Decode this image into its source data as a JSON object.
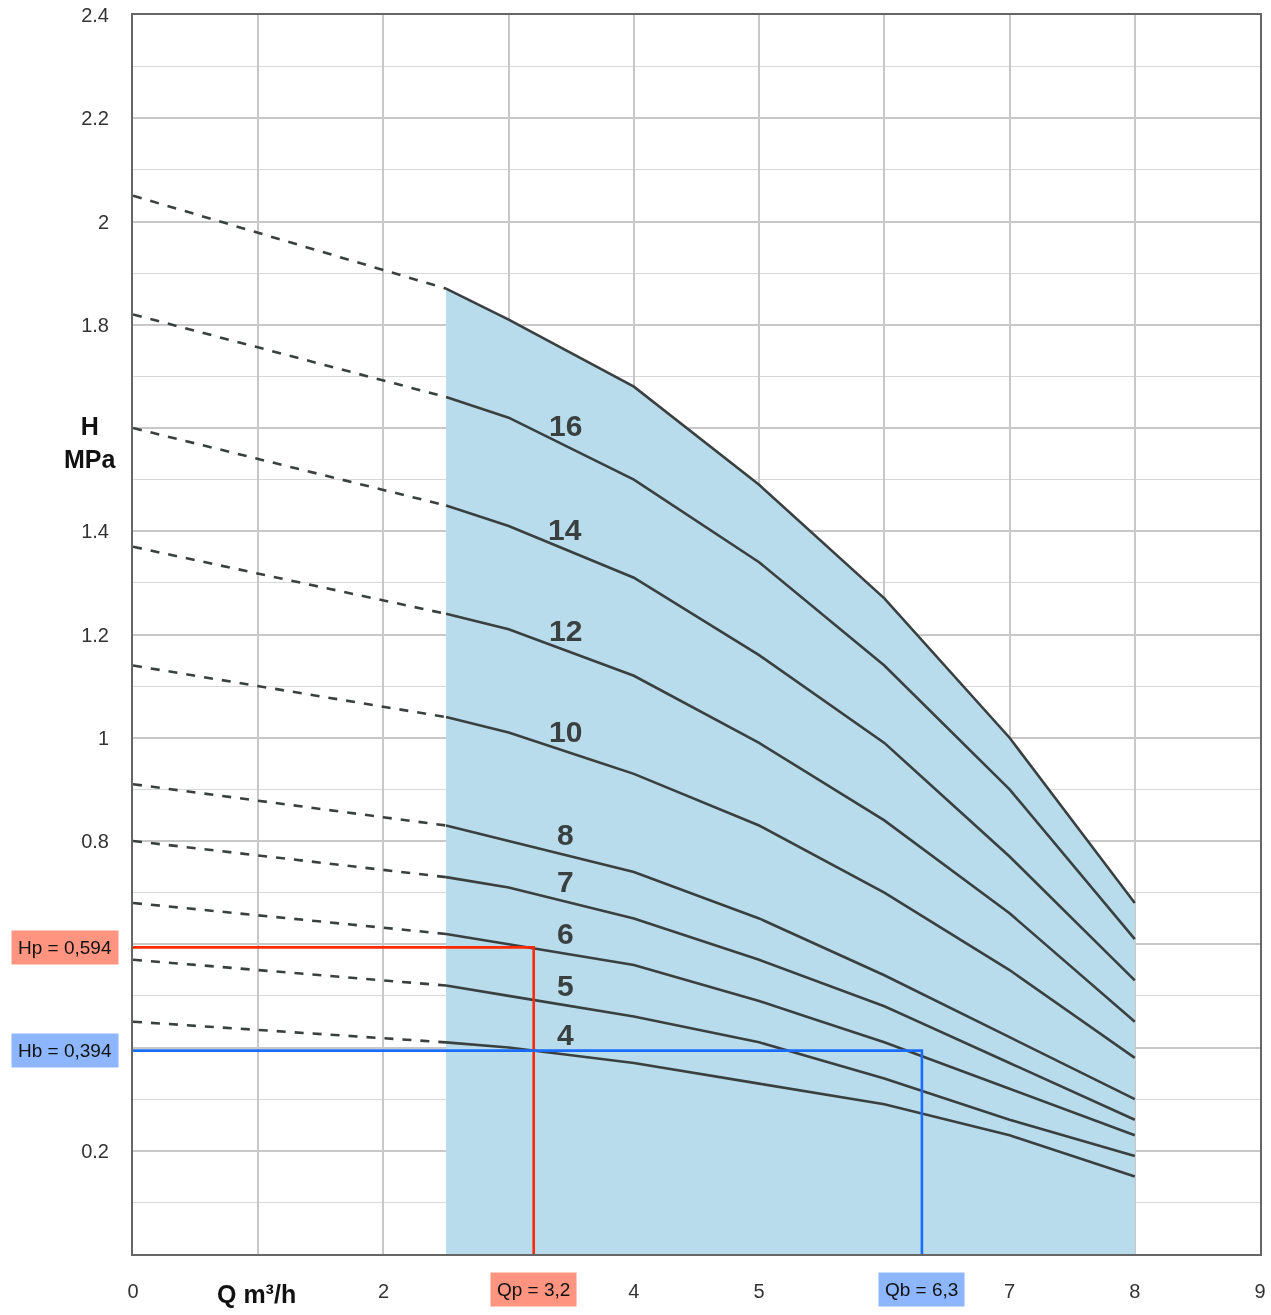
{
  "chart_data": {
    "type": "line",
    "xlabel": "Q m³/h",
    "ylabel": "H\nMPa",
    "xlim": [
      0,
      9
    ],
    "ylim": [
      0,
      2.4
    ],
    "xticks": [
      0,
      {
        "value": 1,
        "label": null
      },
      2,
      {
        "value": 3,
        "label": null
      },
      4,
      5,
      {
        "value": 6,
        "label": null
      },
      7,
      8,
      9
    ],
    "yticks": [
      {
        "value": 0,
        "label": null
      },
      0.2,
      {
        "value": 0.4,
        "label": null
      },
      {
        "value": 0.6,
        "label": null
      },
      0.8,
      1,
      1.2,
      1.4,
      {
        "value": 1.6,
        "label": null
      },
      1.8,
      2,
      2.2,
      2.4
    ],
    "grid": true,
    "series": [
      {
        "color": "#3a4040",
        "line_style": "dashed",
        "x": [
          0,
          2.5
        ],
        "values": [
          2.05,
          1.87
        ]
      },
      {
        "color": "#3a4040",
        "line_style": "dashed",
        "x": [
          0,
          2.5
        ],
        "values": [
          1.82,
          1.66
        ]
      },
      {
        "name": "16",
        "color": "#3a4040",
        "x": [
          2.5,
          3,
          4,
          5,
          6,
          7,
          8
        ],
        "values": [
          1.66,
          1.62,
          1.5,
          1.34,
          1.14,
          0.9,
          0.61
        ]
      },
      {
        "color": "#3a4040",
        "line_style": "dashed",
        "x": [
          0,
          2.5
        ],
        "values": [
          1.6,
          1.45
        ]
      },
      {
        "name": "14",
        "color": "#3a4040",
        "x": [
          2.5,
          3,
          4,
          5,
          6,
          7,
          8
        ],
        "values": [
          1.45,
          1.41,
          1.31,
          1.16,
          0.99,
          0.77,
          0.53
        ]
      },
      {
        "color": "#3a4040",
        "line_style": "dashed",
        "x": [
          0,
          2.5
        ],
        "values": [
          1.37,
          1.24
        ]
      },
      {
        "name": "12",
        "color": "#3a4040",
        "x": [
          2.5,
          3,
          4,
          5,
          6,
          7,
          8
        ],
        "values": [
          1.24,
          1.21,
          1.12,
          0.99,
          0.84,
          0.66,
          0.45
        ]
      },
      {
        "color": "#3a4040",
        "line_style": "dashed",
        "x": [
          0,
          2.5
        ],
        "values": [
          1.14,
          1.04
        ]
      },
      {
        "name": "10",
        "color": "#3a4040",
        "x": [
          2.5,
          3,
          4,
          5,
          6,
          7,
          8
        ],
        "values": [
          1.04,
          1.01,
          0.93,
          0.83,
          0.7,
          0.55,
          0.38
        ]
      },
      {
        "color": "#3a4040",
        "line_style": "dashed",
        "x": [
          0,
          2.5
        ],
        "values": [
          0.91,
          0.83
        ]
      },
      {
        "name": "8",
        "color": "#3a4040",
        "x": [
          2.5,
          3,
          4,
          5,
          6,
          7,
          8
        ],
        "values": [
          0.83,
          0.8,
          0.74,
          0.65,
          0.54,
          0.42,
          0.3
        ]
      },
      {
        "color": "#3a4040",
        "line_style": "dashed",
        "x": [
          0,
          2.5
        ],
        "values": [
          0.8,
          0.73
        ]
      },
      {
        "name": "7",
        "color": "#3a4040",
        "x": [
          2.5,
          3,
          4,
          5,
          6,
          7,
          8
        ],
        "values": [
          0.73,
          0.71,
          0.65,
          0.57,
          0.48,
          0.37,
          0.26
        ]
      },
      {
        "color": "#3a4040",
        "line_style": "dashed",
        "x": [
          0,
          2.5
        ],
        "values": [
          0.68,
          0.62
        ]
      },
      {
        "name": "6",
        "color": "#3a4040",
        "x": [
          2.5,
          3,
          4,
          5,
          6,
          7,
          8
        ],
        "values": [
          0.62,
          0.6,
          0.56,
          0.49,
          0.41,
          0.32,
          0.23
        ]
      },
      {
        "color": "#3a4040",
        "line_style": "dashed",
        "x": [
          0,
          2.5
        ],
        "values": [
          0.57,
          0.52
        ]
      },
      {
        "name": "5",
        "color": "#3a4040",
        "x": [
          2.5,
          3,
          4,
          5,
          6,
          7,
          8
        ],
        "values": [
          0.52,
          0.5,
          0.46,
          0.41,
          0.34,
          0.26,
          0.19
        ]
      },
      {
        "color": "#3a4040",
        "line_style": "dashed",
        "x": [
          0,
          2.5
        ],
        "values": [
          0.45,
          0.41
        ]
      },
      {
        "name": "4",
        "color": "#3a4040",
        "x": [
          2.5,
          3,
          4,
          5,
          6,
          7,
          8
        ],
        "values": [
          0.41,
          0.4,
          0.37,
          0.33,
          0.29,
          0.23,
          0.15
        ]
      },
      {
        "color": "#ff2a00",
        "x": [
          0,
          3.2,
          3.2
        ],
        "values": [
          0.594,
          0.594,
          0
        ]
      },
      {
        "color": "#1a6cff",
        "x": [
          0,
          6.3,
          6.3
        ],
        "values": [
          0.394,
          0.394,
          0
        ]
      },
      {
        "type": "area",
        "color": "#b8dcec",
        "x": [
          2.5,
          3,
          4,
          5,
          6,
          7,
          8
        ],
        "values": [
          1.87,
          1.81,
          1.68,
          1.49,
          1.27,
          1.0,
          0.68
        ]
      }
    ],
    "annotations": [
      {
        "text": "Hp = 0,594",
        "x": 0,
        "y": 0.594
      },
      {
        "text": "Hb = 0,394",
        "x": 0,
        "y": 0.394
      },
      {
        "text": "Qp = 3,2",
        "x": 3.2,
        "y": 0
      },
      {
        "text": "Qb = 6,3",
        "x": 6.3,
        "y": 0
      }
    ]
  }
}
